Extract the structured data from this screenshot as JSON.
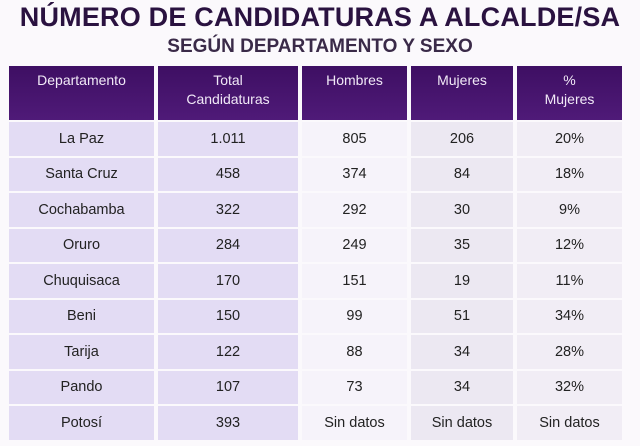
{
  "title": "NÚMERO DE CANDIDATURAS A ALCALDE/SA",
  "subtitle": "SEGÚN DEPARTAMENTO Y SEXO",
  "colors": {
    "header_bg": "#43126a",
    "header_text": "#f1e9f7",
    "cell_bg": "#e3dcf4"
  },
  "headers": [
    {
      "line1": "Departamento",
      "line2": ""
    },
    {
      "line1": "Total",
      "line2": "Candidaturas"
    },
    {
      "line1": "Hombres",
      "line2": ""
    },
    {
      "line1": "Mujeres",
      "line2": ""
    },
    {
      "line1": "%",
      "line2": "Mujeres"
    }
  ],
  "rows": [
    [
      "La Paz",
      "1.011",
      "805",
      "206",
      "20%"
    ],
    [
      "Santa Cruz",
      "458",
      "374",
      "84",
      "18%"
    ],
    [
      "Cochabamba",
      "322",
      "292",
      "30",
      "9%"
    ],
    [
      "Oruro",
      "284",
      "249",
      "35",
      "12%"
    ],
    [
      "Chuquisaca",
      "170",
      "151",
      "19",
      "11%"
    ],
    [
      "Beni",
      "150",
      "99",
      "51",
      "34%"
    ],
    [
      "Tarija",
      "122",
      "88",
      "34",
      "28%"
    ],
    [
      "Pando",
      "107",
      "73",
      "34",
      "32%"
    ],
    [
      "Potosí",
      "393",
      "Sin datos",
      "Sin datos",
      "Sin datos"
    ]
  ]
}
